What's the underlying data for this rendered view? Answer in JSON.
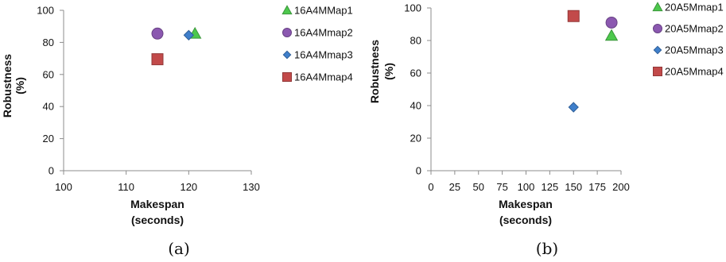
{
  "chart_data": [
    {
      "type": "scatter",
      "caption": "(a)",
      "xlabel": [
        "Makespan",
        "(seconds)"
      ],
      "ylabel": [
        "Robustness",
        "(%)"
      ],
      "xlim": [
        100,
        130
      ],
      "ylim": [
        0,
        100
      ],
      "xticks": [
        100,
        110,
        120,
        130
      ],
      "yticks": [
        0,
        20,
        40,
        60,
        80,
        100
      ],
      "grid": false,
      "legend_position": "right",
      "series": [
        {
          "name": "16A4MMap1",
          "marker": "triangle",
          "color": "#4dc84d",
          "points": [
            {
              "x": 121,
              "y": 85.5
            }
          ]
        },
        {
          "name": "16A4Mmap2",
          "marker": "circle",
          "color": "#8b58b0",
          "points": [
            {
              "x": 115,
              "y": 85.5
            }
          ]
        },
        {
          "name": "16A4Mmap3",
          "marker": "diamond",
          "color": "#3f7fcb",
          "points": [
            {
              "x": 120,
              "y": 84.5
            }
          ]
        },
        {
          "name": "16A4Mmap4",
          "marker": "square",
          "color": "#c24a4a",
          "points": [
            {
              "x": 115,
              "y": 69.5
            }
          ]
        }
      ]
    },
    {
      "type": "scatter",
      "caption": "(b)",
      "xlabel": [
        "Makespan",
        "(seconds)"
      ],
      "ylabel": [
        "Robustness",
        "(%)"
      ],
      "xlim": [
        0,
        200
      ],
      "ylim": [
        0,
        100
      ],
      "xticks": [
        0,
        25,
        50,
        75,
        100,
        125,
        150,
        175,
        200
      ],
      "yticks": [
        0,
        20,
        40,
        60,
        80,
        100
      ],
      "grid": false,
      "legend_position": "right",
      "series": [
        {
          "name": "20A5Mmap1",
          "marker": "triangle",
          "color": "#4dc84d",
          "points": [
            {
              "x": 190,
              "y": 83
            }
          ]
        },
        {
          "name": "20A5Mmap2",
          "marker": "circle",
          "color": "#8b58b0",
          "points": [
            {
              "x": 190,
              "y": 91
            }
          ]
        },
        {
          "name": "20A5Mmap3",
          "marker": "diamond",
          "color": "#3f7fcb",
          "points": [
            {
              "x": 150,
              "y": 39
            }
          ]
        },
        {
          "name": "20A5Mmap4",
          "marker": "square",
          "color": "#c24a4a",
          "points": [
            {
              "x": 150,
              "y": 95
            }
          ]
        }
      ]
    }
  ]
}
